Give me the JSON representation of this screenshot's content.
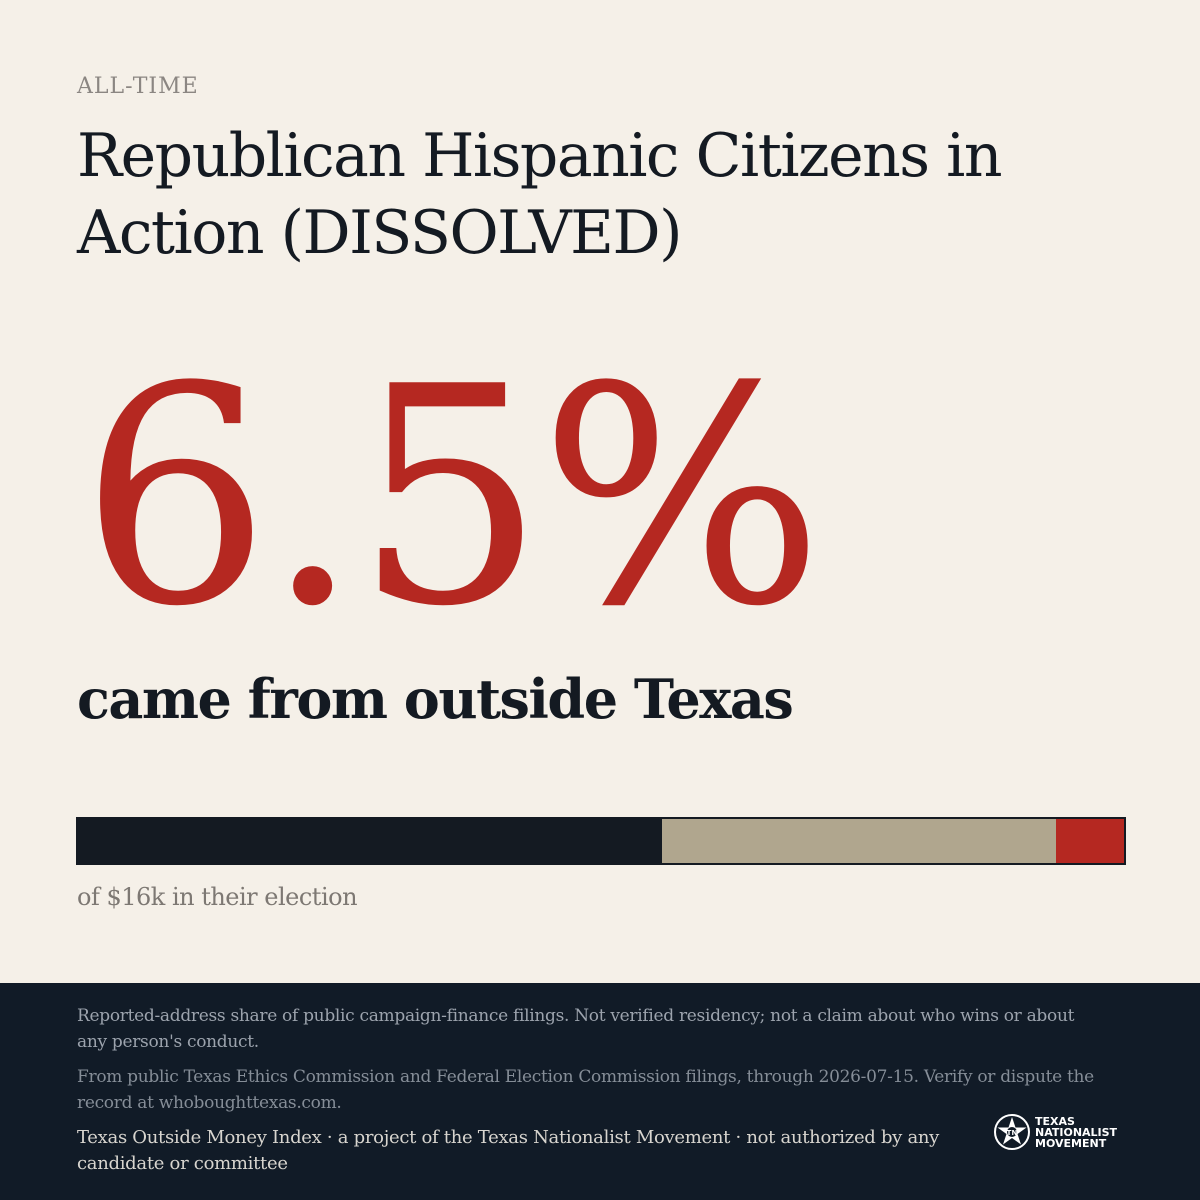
{
  "header": {
    "kicker": "ALL-TIME",
    "title": "Republican Hispanic Citizens in Action (DISSOLVED)"
  },
  "headline": {
    "percent": "6.5%",
    "subtitle": "came from outside Texas"
  },
  "bar": {
    "segments": [
      {
        "share": 55.8,
        "color": "#141a22"
      },
      {
        "share": 37.7,
        "color": "#b0a68e"
      },
      {
        "share": 6.5,
        "color": "#b52821"
      }
    ]
  },
  "caption": "of $16k in their election",
  "footer": {
    "note1": "Reported-address share of public campaign-finance filings. Not verified residency; not a claim about who wins or about any person's conduct.",
    "note2": "From public Texas Ethics Commission and Federal Election Commission filings, through 2026-07-15. Verify or dispute the record at whoboughttexas.com.",
    "credit": "Texas Outside Money Index · a project of the Texas Nationalist Movement · not authorized by any candidate or committee",
    "logo": {
      "line1": "TEXAS",
      "line2": "NATIONALIST",
      "line3": "MOVEMENT",
      "icon": "star-seal-icon"
    }
  }
}
